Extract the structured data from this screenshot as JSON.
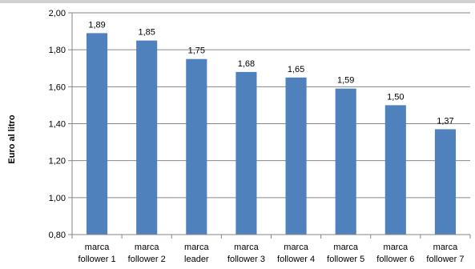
{
  "chart_data": {
    "type": "bar",
    "categories": [
      [
        "marca",
        "follower 1"
      ],
      [
        "marca",
        "follower 2"
      ],
      [
        "marca",
        "leader"
      ],
      [
        "marca",
        "follower 3"
      ],
      [
        "marca",
        "follower 4"
      ],
      [
        "marca",
        "follower 5"
      ],
      [
        "marca",
        "follower 6"
      ],
      [
        "marca",
        "follower 7"
      ]
    ],
    "values": [
      1.89,
      1.85,
      1.75,
      1.68,
      1.65,
      1.59,
      1.5,
      1.37
    ],
    "data_labels": [
      "1,89",
      "1,85",
      "1,75",
      "1,68",
      "1,65",
      "1,59",
      "1,50",
      "1,37"
    ],
    "ylabel": "Euro al litro",
    "ylim": [
      0.8,
      2.0
    ],
    "yticks": [
      0.8,
      1.0,
      1.2,
      1.4,
      1.6,
      1.8,
      2.0
    ],
    "ytick_labels": [
      "0,80",
      "1,00",
      "1,20",
      "1,40",
      "1,60",
      "1,80",
      "2,00"
    ],
    "grid": true,
    "bar_color": "#4F81BD",
    "grid_color": "#868686"
  }
}
